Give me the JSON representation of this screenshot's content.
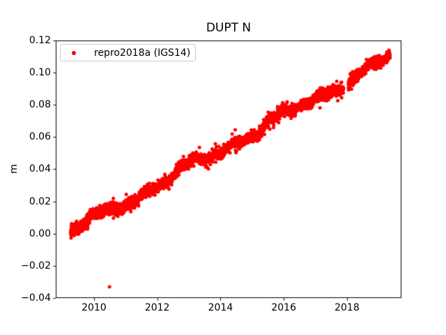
{
  "figure": {
    "background": "#ffffff",
    "frame_color": "#000000",
    "text_color": "#000000"
  },
  "chart_data": {
    "type": "scatter",
    "title": "DUPT N",
    "xlabel": "",
    "ylabel": "m",
    "xlim": [
      2008.79,
      2019.72
    ],
    "ylim": [
      -0.04,
      0.12
    ],
    "grid": false,
    "xticks": {
      "values": [
        2010,
        2012,
        2014,
        2016,
        2018
      ],
      "labels": [
        "2010",
        "2012",
        "2014",
        "2016",
        "2018"
      ]
    },
    "yticks": {
      "values": [
        -0.04,
        -0.02,
        0.0,
        0.02,
        0.04,
        0.06,
        0.08,
        0.1,
        0.12
      ],
      "labels": [
        "−0.04",
        "−0.02",
        "0.00",
        "0.02",
        "0.04",
        "0.06",
        "0.08",
        "0.10",
        "0.12"
      ]
    },
    "legend": {
      "position": "upper-left",
      "border_color": "#cccccc",
      "entries": [
        {
          "label": "repro2018a (IGS14)",
          "marker": "dot",
          "color": "#ff0000"
        }
      ]
    },
    "series": [
      {
        "name": "repro2018a (IGS14)",
        "color": "#ff0000",
        "marker": "dot",
        "marker_radius_px": 2.5,
        "trend": {
          "x_start": 2009.26,
          "x_end": 2019.36,
          "y_start": 0.001,
          "y_end": 0.109,
          "slope_m_per_yr": 0.0107
        },
        "noise_sd_m": 0.0016,
        "excursion_chance": 0.04,
        "excursion_amp_m": 0.005,
        "points_per_year": 365,
        "wiggles": [
          {
            "amp": 0.0022,
            "period": 3.1,
            "phase": 0.3
          },
          {
            "amp": 0.0016,
            "period": 1.4,
            "phase": 3.6
          },
          {
            "amp": 0.001,
            "period": 0.55,
            "phase": 0.0
          }
        ],
        "gaps": [
          [
            2017.89,
            2018.04
          ]
        ],
        "outliers": [
          [
            2010.49,
            -0.033
          ]
        ],
        "seed": 20180014
      }
    ]
  }
}
